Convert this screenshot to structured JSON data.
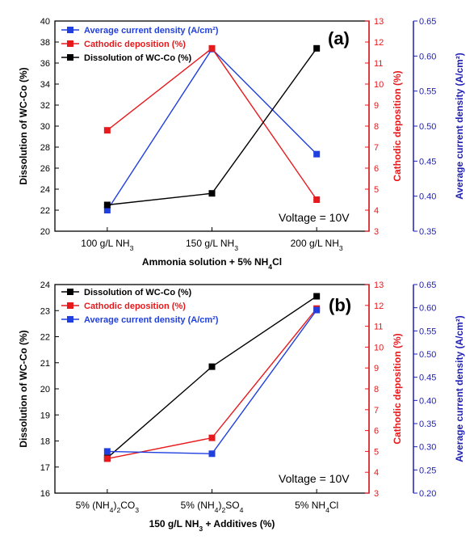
{
  "chart_data": [
    {
      "type": "line",
      "panel_label": "(a)",
      "categories": [
        "100 g/L NH",
        "150 g/L NH",
        "200 g/L NH"
      ],
      "category_subscripts": [
        "3",
        "3",
        "3"
      ],
      "xlabel": "Ammonia solution + 5% NH",
      "xlabel_subscript": "4",
      "xlabel_suffix": "Cl",
      "annotation": "Voltage = 10V",
      "axes": {
        "left": {
          "label": "Dissolution of WC-Co (%)",
          "ylim": [
            20,
            40
          ],
          "ticks": [
            20,
            22,
            24,
            26,
            28,
            30,
            32,
            34,
            36,
            38,
            40
          ],
          "tick_labels": [
            "20",
            "22",
            "24",
            "26",
            "28",
            "30",
            "32",
            "34",
            "36",
            "38",
            "40"
          ],
          "color": "#000000"
        },
        "right1": {
          "label": "Cathodic deposition (%)",
          "ylim": [
            3,
            13
          ],
          "ticks": [
            3,
            4,
            5,
            6,
            7,
            8,
            9,
            10,
            11,
            12,
            13
          ],
          "tick_labels": [
            "3",
            "4",
            "5",
            "6",
            "7",
            "8",
            "9",
            "10",
            "11",
            "12",
            "13"
          ],
          "color": "#e8191c"
        },
        "right2": {
          "label": "Average current density (A/cm²)",
          "ylim": [
            0.35,
            0.65
          ],
          "ticks": [
            0.35,
            0.4,
            0.45,
            0.5,
            0.55,
            0.6,
            0.65
          ],
          "tick_labels": [
            "0.35",
            "0.40",
            "0.45",
            "0.50",
            "0.55",
            "0.60",
            "0.65"
          ],
          "color": "#1f1fb4"
        }
      },
      "series": [
        {
          "name": "Average current density (A/cm²)",
          "axis": "right2",
          "color": "#1f3fe0",
          "values": [
            0.38,
            0.61,
            0.46
          ]
        },
        {
          "name": "Cathodic deposition (%)",
          "axis": "right1",
          "color": "#e8191c",
          "values": [
            7.8,
            11.7,
            4.5
          ]
        },
        {
          "name": "Dissolution of WC-Co (%)",
          "axis": "left",
          "color": "#000000",
          "values": [
            22.5,
            23.6,
            37.4
          ]
        }
      ],
      "legend_position": "top-left"
    },
    {
      "type": "line",
      "panel_label": "(b)",
      "categories": [
        "5% (NH4)2CO3",
        "5% (NH4)2SO4",
        "5% NH4Cl"
      ],
      "xlabel": "150 g/L NH",
      "xlabel_subscript": "3",
      "xlabel_suffix": " + Additives (%)",
      "annotation": "Voltage = 10V",
      "axes": {
        "left": {
          "label": "Dissolution of WC-Co (%)",
          "ylim": [
            16,
            24
          ],
          "ticks": [
            16,
            17,
            18,
            19,
            20,
            21,
            22,
            23,
            24
          ],
          "tick_labels": [
            "16",
            "17",
            "18",
            "19",
            "20",
            "21",
            "22",
            "23",
            "24"
          ],
          "color": "#000000"
        },
        "right1": {
          "label": "Cathodic deposition (%)",
          "ylim": [
            3,
            13
          ],
          "ticks": [
            3,
            4,
            5,
            6,
            7,
            8,
            9,
            10,
            11,
            12,
            13
          ],
          "tick_labels": [
            "3",
            "4",
            "5",
            "6",
            "7",
            "8",
            "9",
            "10",
            "11",
            "12",
            "13"
          ],
          "color": "#e8191c"
        },
        "right2": {
          "label": "Average current density (A/cm²)",
          "ylim": [
            0.2,
            0.65
          ],
          "ticks": [
            0.2,
            0.25,
            0.3,
            0.35,
            0.4,
            0.45,
            0.5,
            0.55,
            0.6,
            0.65
          ],
          "tick_labels": [
            "0.20",
            "0.25",
            "0.30",
            "0.35",
            "0.40",
            "0.45",
            "0.50",
            "0.55",
            "0.60",
            "0.65"
          ],
          "color": "#1f1fb4"
        }
      },
      "series": [
        {
          "name": "Dissolution of WC-Co (%)",
          "axis": "left",
          "color": "#000000",
          "values": [
            17.35,
            20.85,
            23.55
          ]
        },
        {
          "name": "Cathodic deposition (%)",
          "axis": "right1",
          "color": "#e8191c",
          "values": [
            4.65,
            5.65,
            11.85
          ]
        },
        {
          "name": "Average current density (A/cm²)",
          "axis": "right2",
          "color": "#1f3fe0",
          "values": [
            0.29,
            0.285,
            0.595
          ]
        }
      ],
      "legend_position": "top-left"
    }
  ]
}
